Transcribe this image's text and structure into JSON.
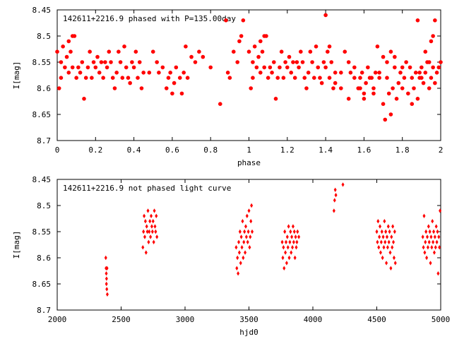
{
  "chart_data": [
    {
      "type": "scatter",
      "title": "142611+2216.9 phased with P=135.00day",
      "xlabel": "phase",
      "ylabel": "I[mag]",
      "xlim": [
        0,
        2
      ],
      "ylim": [
        8.45,
        8.7
      ],
      "y_inverted": true,
      "grid": false,
      "marker": "asterisk",
      "marker_color": "#ff0000",
      "xticks": [
        0,
        0.2,
        0.4,
        0.6,
        0.8,
        1,
        1.2,
        1.4,
        1.6,
        1.8,
        2
      ],
      "xtick_labels": [
        "0",
        "0.2",
        "0.4",
        "0.6",
        "0.8",
        "1",
        "1.2",
        "1.4",
        "1.6",
        "1.8",
        "2"
      ],
      "yticks": [
        8.45,
        8.5,
        8.55,
        8.6,
        8.65,
        8.7
      ],
      "ytick_labels": [
        "8.45",
        "8.5",
        "8.55",
        "8.6",
        "8.65",
        "8.7"
      ],
      "series": [
        {
          "x": [
            0.0,
            0.01,
            0.02,
            0.02,
            0.03,
            0.04,
            0.05,
            0.06,
            0.06,
            0.07,
            0.08,
            0.08,
            0.09,
            0.1,
            0.11,
            0.12,
            0.13,
            0.14,
            0.15,
            0.16,
            0.17,
            0.18,
            0.19,
            0.2,
            0.21,
            0.22,
            0.23,
            0.24,
            0.25,
            0.26,
            0.27,
            0.28,
            0.29,
            0.3,
            0.31,
            0.32,
            0.33,
            0.34,
            0.35,
            0.36,
            0.37,
            0.38,
            0.39,
            0.4,
            0.41,
            0.42,
            0.43,
            0.44,
            0.45,
            0.48,
            0.5,
            0.52,
            0.53,
            0.55,
            0.57,
            0.58,
            0.59,
            0.6,
            0.61,
            0.62,
            0.64,
            0.65,
            0.66,
            0.67,
            0.68,
            0.7,
            0.72,
            0.74,
            0.76,
            0.8,
            0.85,
            0.88,
            0.89,
            0.9,
            0.92,
            0.94,
            0.95,
            0.96,
            0.97,
            1.0,
            1.01,
            1.02,
            1.02,
            1.03,
            1.04,
            1.05,
            1.06,
            1.06,
            1.07,
            1.08,
            1.08,
            1.09,
            1.1,
            1.11,
            1.12,
            1.13,
            1.14,
            1.15,
            1.16,
            1.17,
            1.18,
            1.19,
            1.2,
            1.21,
            1.22,
            1.23,
            1.24,
            1.25,
            1.26,
            1.27,
            1.28,
            1.29,
            1.3,
            1.31,
            1.32,
            1.33,
            1.34,
            1.35,
            1.36,
            1.37,
            1.38,
            1.39,
            1.4,
            1.41,
            1.42,
            1.43,
            1.44,
            1.45,
            1.48,
            1.5,
            1.52,
            1.53,
            1.55,
            1.57,
            1.58,
            1.59,
            1.6,
            1.61,
            1.62,
            1.64,
            1.65,
            1.66,
            1.67,
            1.68,
            1.7,
            1.72,
            1.74,
            1.76,
            1.8,
            1.85,
            1.88,
            1.89,
            1.9,
            1.92,
            1.94,
            1.95,
            1.96,
            1.97,
            1.4,
            1.42,
            1.45,
            1.48,
            1.52,
            1.55,
            1.58,
            1.6,
            1.63,
            1.65,
            1.68,
            1.7,
            1.71,
            1.72,
            1.73,
            1.74,
            1.75,
            1.76,
            1.77,
            1.78,
            1.79,
            1.8,
            1.81,
            1.82,
            1.83,
            1.84,
            1.85,
            1.86,
            1.87,
            1.88,
            1.89,
            1.9,
            1.91,
            1.92,
            1.93,
            1.94,
            1.95,
            1.96,
            1.97,
            1.98,
            1.99,
            2.0
          ],
          "y": [
            8.53,
            8.6,
            8.55,
            8.58,
            8.52,
            8.56,
            8.54,
            8.57,
            8.51,
            8.53,
            8.5,
            8.56,
            8.5,
            8.58,
            8.56,
            8.57,
            8.55,
            8.62,
            8.58,
            8.56,
            8.53,
            8.58,
            8.55,
            8.56,
            8.54,
            8.57,
            8.55,
            8.58,
            8.55,
            8.56,
            8.53,
            8.55,
            8.58,
            8.6,
            8.57,
            8.53,
            8.55,
            8.58,
            8.52,
            8.56,
            8.58,
            8.59,
            8.55,
            8.56,
            8.53,
            8.58,
            8.55,
            8.6,
            8.57,
            8.57,
            8.53,
            8.55,
            8.57,
            8.56,
            8.6,
            8.58,
            8.57,
            8.61,
            8.59,
            8.56,
            8.58,
            8.61,
            8.57,
            8.52,
            8.58,
            8.54,
            8.55,
            8.53,
            8.54,
            8.56,
            8.63,
            8.47,
            8.57,
            8.58,
            8.53,
            8.55,
            8.51,
            8.5,
            8.47,
            8.53,
            8.6,
            8.55,
            8.58,
            8.52,
            8.56,
            8.54,
            8.57,
            8.51,
            8.53,
            8.5,
            8.56,
            8.5,
            8.58,
            8.56,
            8.57,
            8.55,
            8.62,
            8.58,
            8.56,
            8.53,
            8.58,
            8.55,
            8.56,
            8.54,
            8.57,
            8.55,
            8.58,
            8.55,
            8.56,
            8.53,
            8.55,
            8.58,
            8.6,
            8.57,
            8.53,
            8.55,
            8.58,
            8.52,
            8.56,
            8.58,
            8.59,
            8.55,
            8.56,
            8.53,
            8.58,
            8.55,
            8.6,
            8.57,
            8.57,
            8.53,
            8.55,
            8.57,
            8.56,
            8.6,
            8.58,
            8.57,
            8.61,
            8.59,
            8.56,
            8.58,
            8.61,
            8.57,
            8.52,
            8.58,
            8.54,
            8.55,
            8.53,
            8.54,
            8.56,
            8.63,
            8.47,
            8.57,
            8.58,
            8.53,
            8.55,
            8.51,
            8.5,
            8.47,
            8.46,
            8.52,
            8.59,
            8.6,
            8.62,
            8.58,
            8.6,
            8.62,
            8.58,
            8.6,
            8.57,
            8.63,
            8.66,
            8.58,
            8.61,
            8.65,
            8.6,
            8.56,
            8.62,
            8.59,
            8.57,
            8.6,
            8.58,
            8.55,
            8.61,
            8.56,
            8.58,
            8.6,
            8.57,
            8.62,
            8.58,
            8.56,
            8.59,
            8.57,
            8.55,
            8.6,
            8.58,
            8.56,
            8.59,
            8.57,
            8.56,
            8.55
          ]
        }
      ]
    },
    {
      "type": "scatter",
      "title": "142611+2216.9 not phased light curve",
      "xlabel": "hjd0",
      "ylabel": "I[mag]",
      "xlim": [
        2000,
        5000
      ],
      "ylim": [
        8.45,
        8.7
      ],
      "y_inverted": true,
      "grid": false,
      "marker": "diamond",
      "marker_color": "#ff0000",
      "xticks": [
        2000,
        2500,
        3000,
        3500,
        4000,
        4500,
        5000
      ],
      "xtick_labels": [
        "2000",
        "2500",
        "3000",
        "3500",
        "4000",
        "4500",
        "5000"
      ],
      "yticks": [
        8.45,
        8.5,
        8.55,
        8.6,
        8.65,
        8.7
      ],
      "ytick_labels": [
        "8.45",
        "8.5",
        "8.55",
        "8.6",
        "8.65",
        "8.7"
      ],
      "series": [
        {
          "x": [
            2380,
            2382,
            2384,
            2385,
            2386,
            2388,
            2390,
            2392,
            2670,
            2675,
            2680,
            2685,
            2690,
            2695,
            2700,
            2705,
            2710,
            2715,
            2720,
            2725,
            2730,
            2735,
            2740,
            2745,
            2750,
            2755,
            2760,
            2765,
            2770,
            2775,
            2780,
            3400,
            3405,
            3410,
            3415,
            3420,
            3425,
            3430,
            3435,
            3440,
            3445,
            3450,
            3455,
            3460,
            3465,
            3470,
            3475,
            3480,
            3485,
            3490,
            3495,
            3500,
            3505,
            3510,
            3515,
            3520,
            3525,
            3760,
            3765,
            3770,
            3775,
            3780,
            3785,
            3790,
            3795,
            3800,
            3805,
            3810,
            3815,
            3820,
            3825,
            3830,
            3835,
            3840,
            3845,
            3850,
            3855,
            3860,
            3865,
            3870,
            3875,
            3880,
            3890,
            4165,
            4170,
            4175,
            4180,
            4235,
            4500,
            4505,
            4510,
            4515,
            4520,
            4525,
            4530,
            4535,
            4540,
            4545,
            4550,
            4555,
            4560,
            4565,
            4570,
            4575,
            4580,
            4585,
            4590,
            4595,
            4600,
            4605,
            4610,
            4615,
            4620,
            4625,
            4630,
            4635,
            4640,
            4645,
            4860,
            4865,
            4870,
            4875,
            4880,
            4885,
            4890,
            4895,
            4900,
            4905,
            4910,
            4915,
            4920,
            4925,
            4930,
            4935,
            4940,
            4945,
            4950,
            4955,
            4960,
            4965,
            4970,
            4975,
            4980,
            4985,
            4990,
            4995
          ],
          "y": [
            8.6,
            8.62,
            8.63,
            8.65,
            8.64,
            8.66,
            8.62,
            8.67,
            8.58,
            8.55,
            8.52,
            8.56,
            8.53,
            8.59,
            8.54,
            8.55,
            8.51,
            8.57,
            8.55,
            8.53,
            8.56,
            8.52,
            8.54,
            8.55,
            8.53,
            8.57,
            8.51,
            8.54,
            8.55,
            8.52,
            8.56,
            8.58,
            8.62,
            8.6,
            8.63,
            8.57,
            8.59,
            8.55,
            8.61,
            8.56,
            8.58,
            8.53,
            8.6,
            8.57,
            8.55,
            8.59,
            8.54,
            8.56,
            8.52,
            8.57,
            8.55,
            8.51,
            8.58,
            8.56,
            8.53,
            8.5,
            8.55,
            8.57,
            8.6,
            8.58,
            8.62,
            8.55,
            8.59,
            8.57,
            8.61,
            8.56,
            8.58,
            8.54,
            8.6,
            8.57,
            8.55,
            8.59,
            8.56,
            8.58,
            8.54,
            8.57,
            8.55,
            8.6,
            8.56,
            8.58,
            8.57,
            8.55,
            8.56,
            8.51,
            8.49,
            8.47,
            8.48,
            8.46,
            8.55,
            8.57,
            8.53,
            8.58,
            8.56,
            8.54,
            8.59,
            8.57,
            8.55,
            8.6,
            8.56,
            8.58,
            8.53,
            8.57,
            8.55,
            8.61,
            8.56,
            8.58,
            8.54,
            8.57,
            8.55,
            8.59,
            8.62,
            8.56,
            8.58,
            8.54,
            8.57,
            8.6,
            8.55,
            8.61,
            8.56,
            8.58,
            8.52,
            8.59,
            8.57,
            8.55,
            8.6,
            8.56,
            8.58,
            8.54,
            8.57,
            8.55,
            8.61,
            8.56,
            8.58,
            8.53,
            8.57,
            8.55,
            8.59,
            8.56,
            8.58,
            8.54,
            8.57,
            8.55,
            8.63,
            8.56,
            8.58,
            8.51
          ]
        }
      ]
    }
  ]
}
